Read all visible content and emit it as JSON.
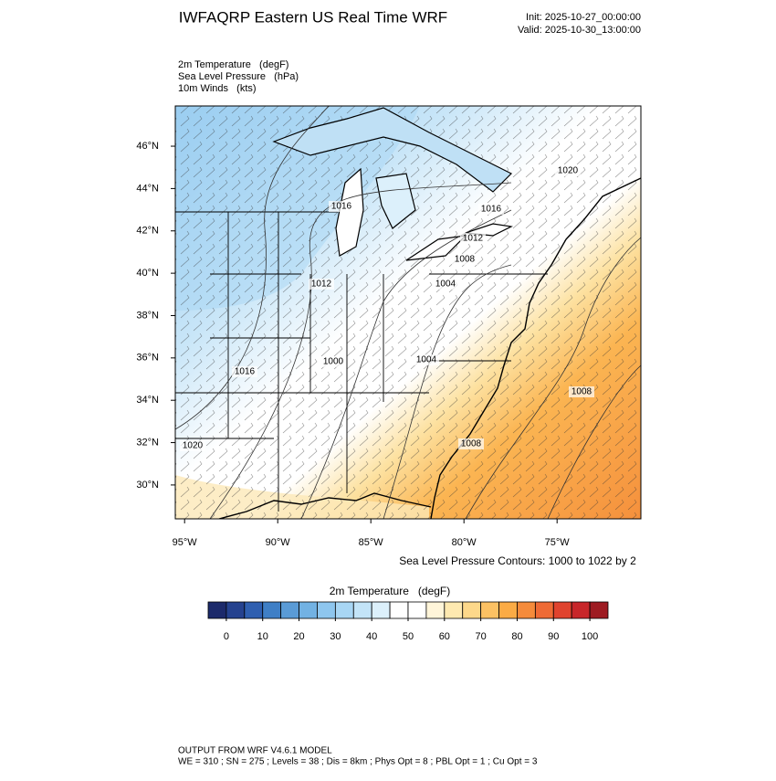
{
  "header": {
    "title": "IWFAQRP Eastern US Real Time WRF",
    "init": "Init: 2025-10-27_00:00:00",
    "valid": "Valid: 2025-10-30_13:00:00"
  },
  "fields": [
    "2m Temperature   (degF)",
    "Sea Level Pressure   (hPa)",
    "10m Winds   (kts)"
  ],
  "map": {
    "xlim": [
      -95.5,
      -70.5
    ],
    "ylim": [
      28.4,
      47.9
    ],
    "yticks": [
      {
        "value": 30,
        "label": "30°N"
      },
      {
        "value": 32,
        "label": "32°N"
      },
      {
        "value": 34,
        "label": "34°N"
      },
      {
        "value": 36,
        "label": "36°N"
      },
      {
        "value": 38,
        "label": "38°N"
      },
      {
        "value": 40,
        "label": "40°N"
      },
      {
        "value": 42,
        "label": "42°N"
      },
      {
        "value": 44,
        "label": "44°N"
      },
      {
        "value": 46,
        "label": "46°N"
      }
    ],
    "xticks": [
      {
        "value": -95,
        "label": "95°W"
      },
      {
        "value": -90,
        "label": "90°W"
      },
      {
        "value": -85,
        "label": "85°W"
      },
      {
        "value": -80,
        "label": "80°W"
      },
      {
        "value": -75,
        "label": "75°W"
      }
    ],
    "contour_labels": [
      "1016",
      "1016",
      "1020",
      "1012",
      "1008",
      "1012",
      "1004",
      "1016",
      "1000",
      "1004",
      "1008",
      "1020",
      "1008"
    ],
    "caption": "Sea Level Pressure Contours: 1000 to 1022 by 2"
  },
  "colorbar": {
    "title": "2m Temperature   (degF)",
    "range": [
      -5,
      105
    ],
    "colors": [
      "#1c2a6b",
      "#25428f",
      "#2f5fb0",
      "#3f7fc6",
      "#5a9bd6",
      "#72b2e3",
      "#8ec6ee",
      "#a8d6f4",
      "#c3e4f8",
      "#dcf0fb",
      "#ffffff",
      "#ffffff",
      "#fff5d9",
      "#fee9b0",
      "#fdd88a",
      "#fcc163",
      "#fbab45",
      "#f58b3b",
      "#ee6a35",
      "#e0432e",
      "#c8262a",
      "#9e1b22"
    ],
    "ticks": [
      0,
      10,
      20,
      30,
      40,
      50,
      60,
      70,
      80,
      90,
      100
    ]
  },
  "footer": [
    "OUTPUT FROM WRF V4.6.1 MODEL",
    "WE = 310 ; SN = 275 ; Levels = 38 ; Dis = 8km ; Phys Opt = 8 ; PBL Opt = 1 ; Cu Opt = 3"
  ]
}
